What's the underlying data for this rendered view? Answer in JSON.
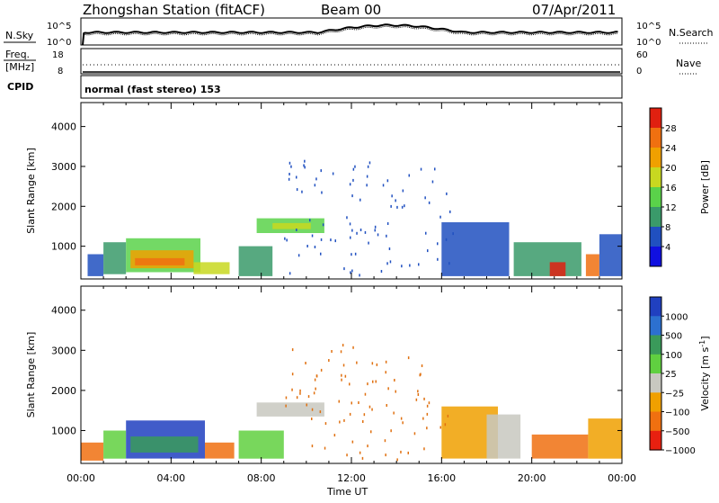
{
  "header": {
    "station": "Zhongshan Station (fitACF)",
    "beam": "Beam 00",
    "date": "07/Apr/2011"
  },
  "strips": {
    "nsky_label": "N.Sky",
    "nsky_ticks_left": [
      "10^5",
      "10^0"
    ],
    "nsky_ticks_right": [
      "10^5",
      "10^0"
    ],
    "nsearch_label": "N.Search",
    "freq_label": "Freq.",
    "freq_unit": "[MHz]",
    "freq_ticks": [
      "18",
      "8"
    ],
    "nave_label": "Nave",
    "nave_ticks": [
      "60",
      "0"
    ],
    "cpid_label": "CPID",
    "cpid_text": "normal (fast stereo) 153"
  },
  "chart_data": [
    {
      "type": "heatmap",
      "title": "",
      "xlabel": "Time UT",
      "ylabel": "Slant Range [km]",
      "x_ticks": [
        "00:00",
        "04:00",
        "08:00",
        "12:00",
        "16:00",
        "20:00",
        "00:00"
      ],
      "y_ticks": [
        "1000",
        "2000",
        "3000",
        "4000"
      ],
      "ylim": [
        180,
        4600
      ],
      "colorbar": {
        "label": "Power [dB]",
        "ticks": [
          "4",
          "8",
          "12",
          "16",
          "20",
          "24",
          "28"
        ],
        "colors": [
          "#1010e0",
          "#2050c0",
          "#3a9a6a",
          "#5ad24a",
          "#c8d820",
          "#f0a000",
          "#f07010",
          "#e02010"
        ]
      },
      "regions": [
        {
          "t": [
            0.3,
            1.0
          ],
          "r": [
            250,
            800
          ],
          "c": 1
        },
        {
          "t": [
            1.0,
            2.0
          ],
          "r": [
            300,
            1100
          ],
          "c": 2
        },
        {
          "t": [
            2.0,
            5.3
          ],
          "r": [
            350,
            1200
          ],
          "c": 3
        },
        {
          "t": [
            2.2,
            5.0
          ],
          "r": [
            450,
            900
          ],
          "c": 5
        },
        {
          "t": [
            2.4,
            4.6
          ],
          "r": [
            520,
            700
          ],
          "c": 6
        },
        {
          "t": [
            5.0,
            6.6
          ],
          "r": [
            300,
            600
          ],
          "c": 4
        },
        {
          "t": [
            7.0,
            8.5
          ],
          "r": [
            250,
            1000
          ],
          "c": 2
        },
        {
          "t": [
            7.8,
            10.8
          ],
          "r": [
            1330,
            1700
          ],
          "c": 3
        },
        {
          "t": [
            8.5,
            10.2
          ],
          "r": [
            1430,
            1580
          ],
          "c": 4
        },
        {
          "t": [
            16.0,
            19.0
          ],
          "r": [
            250,
            1600
          ],
          "c": 1
        },
        {
          "t": [
            19.2,
            22.2
          ],
          "r": [
            250,
            1100
          ],
          "c": 2
        },
        {
          "t": [
            20.8,
            21.5
          ],
          "r": [
            250,
            600
          ],
          "c": 7
        },
        {
          "t": [
            22.4,
            23.0
          ],
          "r": [
            250,
            800
          ],
          "c": 6
        },
        {
          "t": [
            23.0,
            24.0
          ],
          "r": [
            250,
            1300
          ],
          "c": 1
        }
      ]
    },
    {
      "type": "heatmap",
      "title": "",
      "xlabel": "Time UT",
      "ylabel": "Slant Range [km]",
      "x_ticks": [
        "00:00",
        "04:00",
        "08:00",
        "12:00",
        "16:00",
        "20:00",
        "00:00"
      ],
      "y_ticks": [
        "1000",
        "2000",
        "3000",
        "4000"
      ],
      "ylim": [
        180,
        4600
      ],
      "colorbar": {
        "label": "Velocity [m s",
        "label_sup": "-1",
        "label_end": "]",
        "ticks": [
          "1000",
          "500",
          "100",
          "25",
          "−25",
          "−100",
          "−500",
          "−1000"
        ],
        "colors": [
          "#2040c0",
          "#2c70d0",
          "#3a9a5a",
          "#60d040",
          "#c8c8c0",
          "#f0a000",
          "#f07010",
          "#e82010",
          "#e02010"
        ]
      },
      "regions": [
        {
          "t": [
            0.0,
            1.0
          ],
          "r": [
            250,
            700
          ],
          "c": 6
        },
        {
          "t": [
            1.0,
            2.0
          ],
          "r": [
            300,
            1000
          ],
          "c": 3
        },
        {
          "t": [
            2.0,
            5.5
          ],
          "r": [
            300,
            1250
          ],
          "c": 0
        },
        {
          "t": [
            2.2,
            5.2
          ],
          "r": [
            450,
            850
          ],
          "c": 2
        },
        {
          "t": [
            5.5,
            6.8
          ],
          "r": [
            300,
            700
          ],
          "c": 6
        },
        {
          "t": [
            7.8,
            10.8
          ],
          "r": [
            1350,
            1700
          ],
          "c": 4
        },
        {
          "t": [
            7.0,
            9.0
          ],
          "r": [
            300,
            1000
          ],
          "c": 3
        },
        {
          "t": [
            16.0,
            18.5
          ],
          "r": [
            300,
            1600
          ],
          "c": 5
        },
        {
          "t": [
            18.0,
            19.5
          ],
          "r": [
            300,
            1400
          ],
          "c": 4
        },
        {
          "t": [
            20.0,
            22.5
          ],
          "r": [
            300,
            900
          ],
          "c": 6
        },
        {
          "t": [
            22.5,
            24.0
          ],
          "r": [
            300,
            1300
          ],
          "c": 5
        }
      ]
    }
  ]
}
